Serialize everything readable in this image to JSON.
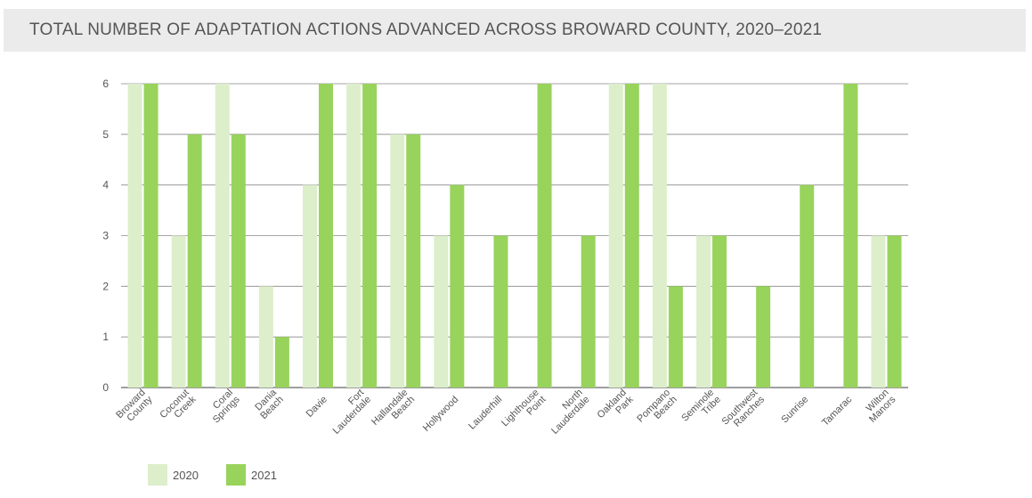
{
  "title": "TOTAL NUMBER OF ADAPTATION ACTIONS ADVANCED ACROSS BROWARD COUNTY, 2020–2021",
  "colors": {
    "s2020": "#ddeecb",
    "s2021": "#98d35c",
    "grid": "#888888",
    "axis_text": "#555555"
  },
  "chart_data": {
    "type": "bar",
    "title": "TOTAL NUMBER OF ADAPTATION ACTIONS ADVANCED ACROSS BROWARD COUNTY, 2020–2021",
    "categories": [
      [
        "Broward",
        "County"
      ],
      [
        "Coconut",
        "Creek"
      ],
      [
        "Coral",
        "Springs"
      ],
      [
        "Dania",
        "Beach"
      ],
      [
        "Davie"
      ],
      [
        "Fort",
        "Lauderdale"
      ],
      [
        "Hallandale",
        "Beach"
      ],
      [
        "Hollywood"
      ],
      [
        "Lauderhill"
      ],
      [
        "Lighthouse",
        "Point"
      ],
      [
        "North",
        "Lauderdale"
      ],
      [
        "Oakland",
        "Park"
      ],
      [
        "Pompano",
        "Beach"
      ],
      [
        "Seminole",
        "Tribe"
      ],
      [
        "Southwest",
        "Ranches"
      ],
      [
        "Sunrise"
      ],
      [
        "Tamarac"
      ],
      [
        "Wilton",
        "Manors"
      ]
    ],
    "series": [
      {
        "name": "2020",
        "values": [
          6,
          3,
          6,
          2,
          4,
          6,
          5,
          3,
          0,
          0,
          0,
          6,
          6,
          3,
          0,
          0,
          0,
          3
        ]
      },
      {
        "name": "2021",
        "values": [
          6,
          5,
          5,
          1,
          6,
          6,
          5,
          4,
          3,
          6,
          3,
          6,
          2,
          3,
          2,
          4,
          6,
          3
        ]
      }
    ],
    "ylim": [
      0,
      6
    ],
    "yticks": [
      0,
      1,
      2,
      3,
      4,
      5,
      6
    ],
    "grid": true,
    "legend_position": "bottom-left"
  }
}
